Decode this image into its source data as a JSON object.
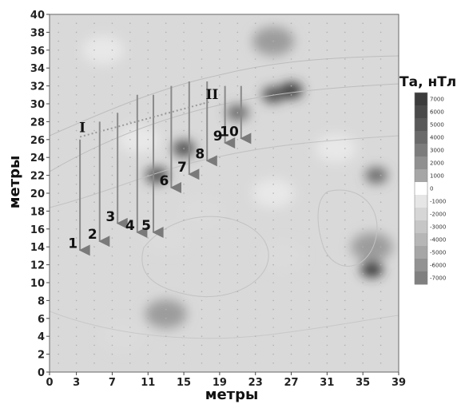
{
  "chart_data": {
    "type": "heatmap",
    "title": "",
    "xlabel": "метры",
    "ylabel": "метры",
    "xlim": [
      0,
      39
    ],
    "ylim": [
      0,
      40
    ],
    "x_ticks": [
      "0",
      "3",
      "7",
      "11",
      "15",
      "19",
      "23",
      "27",
      "31",
      "35",
      "39"
    ],
    "y_ticks": [
      "0",
      "2",
      "4",
      "6",
      "8",
      "10",
      "12",
      "14",
      "16",
      "18",
      "20",
      "22",
      "24",
      "26",
      "28",
      "30",
      "32",
      "34",
      "36",
      "38",
      "40"
    ],
    "colorbar": {
      "title": "Та, нТл",
      "ticks": [
        "7000",
        "6000",
        "5000",
        "4000",
        "3000",
        "2000",
        "1000",
        "0",
        "-1000",
        "-2000",
        "-3000",
        "-4000",
        "-5000",
        "-6000",
        "-7000"
      ],
      "colors": [
        "#3c3c3c",
        "#4a4a4a",
        "#595959",
        "#6a6a6a",
        "#7c7c7c",
        "#909090",
        "#a6a6a6",
        "#ffffff",
        "#e6e6e6",
        "#d6d6d6",
        "#c6c6c6",
        "#b6b6b6",
        "#a6a6a6",
        "#929292",
        "#808080"
      ]
    },
    "profiles": [
      {
        "label": "1",
        "x": 3.4,
        "y_start": 26.0,
        "y_end": 13.0
      },
      {
        "label": "2",
        "x": 5.6,
        "y_start": 28.0,
        "y_end": 14.0
      },
      {
        "label": "3",
        "x": 7.6,
        "y_start": 29.0,
        "y_end": 16.0
      },
      {
        "label": "4",
        "x": 9.8,
        "y_start": 31.0,
        "y_end": 15.0
      },
      {
        "label": "5",
        "x": 11.6,
        "y_start": 31.0,
        "y_end": 15.0
      },
      {
        "label": "6",
        "x": 13.6,
        "y_start": 32.0,
        "y_end": 20.0
      },
      {
        "label": "7",
        "x": 15.6,
        "y_start": 32.5,
        "y_end": 21.5
      },
      {
        "label": "8",
        "x": 17.6,
        "y_start": 32.5,
        "y_end": 23.0
      },
      {
        "label": "9",
        "x": 19.6,
        "y_start": 32.0,
        "y_end": 25.0
      },
      {
        "label": "10",
        "x": 21.4,
        "y_start": 32.0,
        "y_end": 25.5
      }
    ],
    "lines": [
      {
        "label": "I",
        "x": [
          3.4,
          17.8
        ],
        "y": [
          26.3,
          30.2
        ]
      },
      {
        "label": "II",
        "x": [
          17.8
        ],
        "y": [
          30.2
        ]
      }
    ],
    "anomalies": [
      {
        "x": 12.0,
        "y": 22.0,
        "value": 6000
      },
      {
        "x": 15.0,
        "y": 25.0,
        "value": 6000
      },
      {
        "x": 21.0,
        "y": 29.0,
        "value": 5000
      },
      {
        "x": 25.0,
        "y": 31.0,
        "value": 6000
      },
      {
        "x": 27.0,
        "y": 31.5,
        "value": 7000
      },
      {
        "x": 36.0,
        "y": 11.5,
        "value": 7000
      },
      {
        "x": 36.5,
        "y": 22.0,
        "value": 5000
      },
      {
        "x": 25.0,
        "y": 37.0,
        "value": 3000
      },
      {
        "x": 36.0,
        "y": 14.0,
        "value": 3000
      },
      {
        "x": 13.0,
        "y": 15.0,
        "value": -2000
      },
      {
        "x": 10.0,
        "y": 26.0,
        "value": -1000
      },
      {
        "x": 17.0,
        "y": 18.0,
        "value": -2000
      },
      {
        "x": 13.0,
        "y": 6.5,
        "value": 3000
      },
      {
        "x": 25.0,
        "y": 20.0,
        "value": -1000
      },
      {
        "x": 32.0,
        "y": 25.0,
        "value": -1000
      },
      {
        "x": 26.0,
        "y": 13.0,
        "value": -2000
      },
      {
        "x": 8.0,
        "y": 4.0,
        "value": -2000
      },
      {
        "x": 6.0,
        "y": 36.0,
        "value": -1000
      }
    ],
    "grid": false,
    "legend": "colorbar-right"
  }
}
